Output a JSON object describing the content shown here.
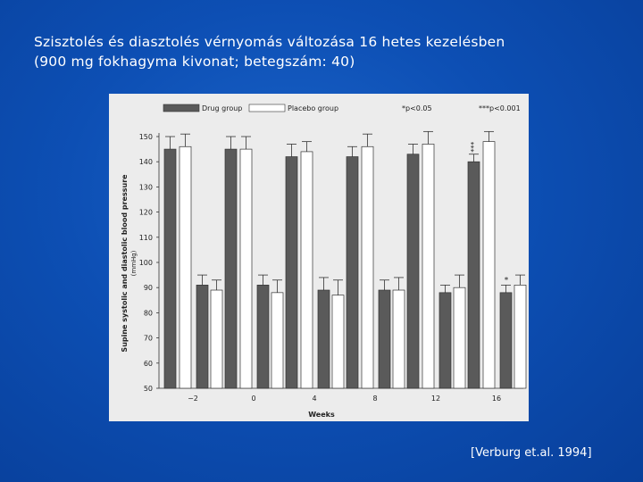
{
  "slide": {
    "title_line1": "Szisztolés és diasztolés vérnyomás változása 16 hetes kezelésben",
    "title_line2": "(900 mg fokhagyma kivonat; betegszám: 40)",
    "citation": "[Verburg et.al. 1994]"
  },
  "colors": {
    "background": "#0d4fb4",
    "title_text": "#ffffff",
    "drug_bar": "#5a5a5a",
    "placebo_bar": "#ffffff"
  },
  "chart_data": {
    "type": "bar",
    "categories": [
      "−2",
      "0",
      "4",
      "8",
      "12",
      "16"
    ],
    "series": [
      {
        "name": "Drug group",
        "systolic": [
          145,
          145,
          142,
          142,
          143,
          140
        ],
        "diastolic": [
          91,
          91,
          89,
          89,
          88,
          88
        ],
        "error_systolic": [
          5,
          5,
          5,
          4,
          4,
          3
        ],
        "error_diastolic": [
          4,
          4,
          5,
          4,
          3,
          3
        ]
      },
      {
        "name": "Placebo group",
        "systolic": [
          146,
          145,
          144,
          146,
          147,
          148
        ],
        "diastolic": [
          89,
          88,
          87,
          89,
          90,
          91
        ],
        "error_systolic": [
          5,
          5,
          4,
          5,
          5,
          4
        ],
        "error_diastolic": [
          4,
          5,
          6,
          5,
          5,
          4
        ]
      }
    ],
    "annotations": {
      "sig_single": "*p<0.05",
      "sig_triple": "***p<0.001",
      "marker_triple": "***",
      "marker_single": "*"
    },
    "xlabel": "Weeks",
    "ylabel_line1": "Supine systolic and diastolic blood pressure",
    "ylabel_line2": "(mmHg)",
    "yticks": [
      50,
      60,
      70,
      80,
      90,
      100,
      110,
      120,
      130,
      140,
      150
    ],
    "ylim": [
      50,
      150
    ],
    "grid": false,
    "legend": "top-left"
  }
}
